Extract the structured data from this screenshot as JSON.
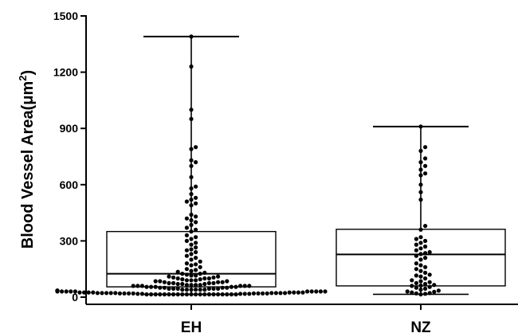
{
  "chart_data": {
    "type": "box",
    "title": "",
    "xlabel": "",
    "ylabel": "Blood Vessel Area(μm",
    "ylabel_sup": "2",
    "ylabel_close": ")",
    "ylim": [
      0,
      1500
    ],
    "yticks": [
      0,
      300,
      600,
      900,
      1200,
      1500
    ],
    "grid": false,
    "categories": [
      "EH",
      "NZ"
    ],
    "boxes": [
      {
        "category": "EH",
        "min": 15,
        "q1": 55,
        "median": 125,
        "q3": 350,
        "max": 1390
      },
      {
        "category": "NZ",
        "min": 15,
        "q1": 60,
        "median": 228,
        "q3": 362,
        "max": 910
      }
    ],
    "points": [
      [
        15,
        15,
        15,
        15,
        15,
        15,
        15,
        15,
        15,
        15,
        15,
        15,
        15,
        15,
        15,
        15,
        15,
        15,
        15,
        15,
        15,
        18,
        18,
        18,
        18,
        18,
        20,
        20,
        20,
        20,
        20,
        20,
        20,
        20,
        22,
        22,
        22,
        22,
        22,
        22,
        22,
        22,
        22,
        25,
        25,
        25,
        25,
        25,
        25,
        25,
        25,
        30,
        30,
        30,
        30,
        30,
        30,
        30,
        30,
        30,
        30,
        35,
        35,
        35,
        35,
        35,
        35,
        35,
        40,
        40,
        40,
        40,
        40,
        40,
        45,
        45,
        45,
        45,
        45,
        45,
        50,
        50,
        50,
        50,
        55,
        55,
        55,
        55,
        55,
        60,
        60,
        60,
        60,
        60,
        60,
        65,
        65,
        65,
        65,
        70,
        70,
        70,
        75,
        75,
        75,
        75,
        80,
        80,
        80,
        85,
        85,
        85,
        90,
        90,
        90,
        95,
        95,
        100,
        100,
        100,
        105,
        105,
        110,
        110,
        115,
        115,
        120,
        125,
        125,
        130,
        135,
        140,
        145,
        150,
        160,
        170,
        175,
        180,
        190,
        200,
        210,
        220,
        230,
        240,
        250,
        255,
        265,
        280,
        290,
        300,
        310,
        320,
        330,
        350,
        360,
        370,
        385,
        400,
        410,
        420,
        430,
        440,
        490,
        500,
        510,
        520,
        530,
        550,
        580,
        590,
        640,
        700,
        720,
        730,
        790,
        800,
        950,
        1000,
        1230,
        1390
      ],
      [
        15,
        18,
        20,
        22,
        25,
        28,
        30,
        35,
        40,
        45,
        50,
        55,
        60,
        62,
        65,
        70,
        75,
        80,
        85,
        90,
        100,
        110,
        115,
        120,
        130,
        140,
        150,
        160,
        170,
        180,
        200,
        210,
        220,
        230,
        235,
        240,
        250,
        260,
        270,
        280,
        290,
        300,
        310,
        320,
        360,
        380,
        520,
        560,
        600,
        650,
        660,
        680,
        700,
        720,
        740,
        780,
        800,
        910
      ]
    ]
  }
}
